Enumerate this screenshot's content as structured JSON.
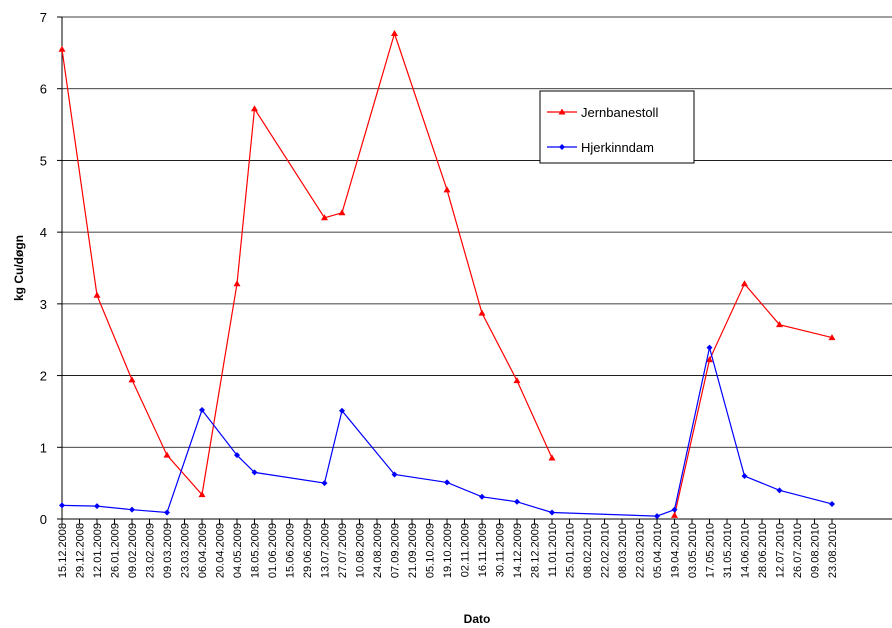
{
  "chart_data": {
    "type": "line",
    "title": "",
    "xlabel": "Dato",
    "ylabel": "kg Cu/døgn",
    "ylim": [
      0,
      7
    ],
    "yticks": [
      "0",
      "1",
      "2",
      "3",
      "4",
      "5",
      "6",
      "7"
    ],
    "grid": "horizontal",
    "legend_position": "top-right",
    "categories": [
      "15.12.2008",
      "29.12.2008",
      "12.01.2009",
      "26.01.2009",
      "09.02.2009",
      "23.02.2009",
      "09.03.2009",
      "23.03.2009",
      "06.04.2009",
      "20.04.2009",
      "04.05.2009",
      "18.05.2009",
      "01.06.2009",
      "15.06.2009",
      "29.06.2009",
      "13.07.2009",
      "27.07.2009",
      "10.08.2009",
      "24.08.2009",
      "07.09.2009",
      "21.09.2009",
      "05.10.2009",
      "19.10.2009",
      "02.11.2009",
      "16.11.2009",
      "30.11.2009",
      "14.12.2009",
      "28.12.2009",
      "11.01.2010",
      "25.01.2010",
      "08.02.2010",
      "22.02.2010",
      "08.03.2010",
      "22.03.2010",
      "05.04.2010",
      "19.04.2010",
      "03.05.2010",
      "17.05.2010",
      "31.05.2010",
      "14.06.2010",
      "28.06.2010",
      "12.07.2010",
      "26.07.2010",
      "09.08.2010",
      "23.08.2010"
    ],
    "series": [
      {
        "name": "Jernbanestoll",
        "color": "#ff0000",
        "marker": "triangle",
        "segments": [
          [
            [
              "15.12.2008",
              6.55
            ],
            [
              "12.01.2009",
              3.12
            ],
            [
              "09.02.2009",
              1.94
            ],
            [
              "09.03.2009",
              0.89
            ],
            [
              "06.04.2009",
              0.34
            ],
            [
              "04.05.2009",
              3.28
            ],
            [
              "18.05.2009",
              5.72
            ],
            [
              "13.07.2009",
              4.2
            ],
            [
              "27.07.2009",
              4.27
            ],
            [
              "07.09.2009",
              6.77
            ],
            [
              "19.10.2009",
              4.59
            ],
            [
              "16.11.2009",
              2.87
            ],
            [
              "14.12.2009",
              1.93
            ],
            [
              "11.01.2010",
              0.85
            ]
          ],
          [
            [
              "19.04.2010",
              0.05
            ],
            [
              "17.05.2010",
              2.22
            ],
            [
              "14.06.2010",
              3.28
            ],
            [
              "12.07.2010",
              2.71
            ],
            [
              "23.08.2010",
              2.53
            ]
          ]
        ]
      },
      {
        "name": "Hjerkinndam",
        "color": "#0000ff",
        "marker": "diamond",
        "segments": [
          [
            [
              "15.12.2008",
              0.19
            ],
            [
              "12.01.2009",
              0.18
            ],
            [
              "09.02.2009",
              0.13
            ],
            [
              "09.03.2009",
              0.09
            ],
            [
              "06.04.2009",
              1.52
            ],
            [
              "04.05.2009",
              0.89
            ],
            [
              "18.05.2009",
              0.65
            ],
            [
              "13.07.2009",
              0.5
            ],
            [
              "27.07.2009",
              1.51
            ],
            [
              "07.09.2009",
              0.62
            ],
            [
              "19.10.2009",
              0.51
            ],
            [
              "16.11.2009",
              0.31
            ],
            [
              "14.12.2009",
              0.24
            ],
            [
              "11.01.2010",
              0.09
            ],
            [
              "05.04.2010",
              0.04
            ],
            [
              "19.04.2010",
              0.13
            ],
            [
              "17.05.2010",
              2.39
            ],
            [
              "14.06.2010",
              0.6
            ],
            [
              "12.07.2010",
              0.4
            ],
            [
              "23.08.2010",
              0.21
            ]
          ]
        ]
      }
    ]
  }
}
